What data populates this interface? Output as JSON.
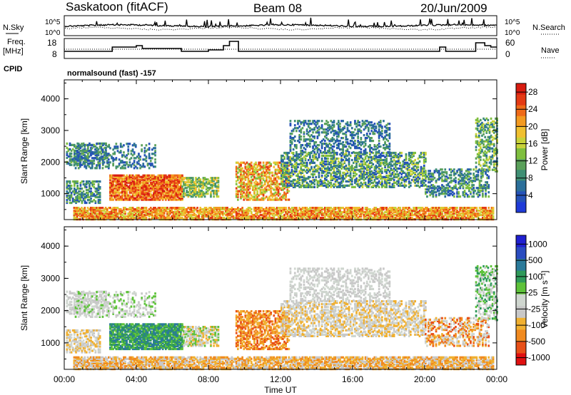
{
  "header": {
    "station": "Saskatoon (fitACF)",
    "beam": "Beam 08",
    "date": "20/Jun/2009"
  },
  "left_labels": {
    "nsky": "N.Sky",
    "freq": "Freq.",
    "freq_unit": "[MHz]",
    "cpid": "CPID"
  },
  "right_labels": {
    "nsearch": "N.Search",
    "nave": "Nave"
  },
  "cpid_text": "normalsound (fast) -157",
  "colors": {
    "power": [
      "#1f3bd8",
      "#2552b8",
      "#2b6f9a",
      "#3f8f74",
      "#5aa05a",
      "#7fbf3f",
      "#c8d23a",
      "#f0c030",
      "#f39a20",
      "#ef6a18",
      "#e43a14",
      "#d81c10"
    ],
    "velocity": [
      "#2020d0",
      "#2a4cc0",
      "#2a7a9a",
      "#2f9a5a",
      "#5ec23a",
      "#cfd6cf",
      "#c8c8c8",
      "#f0b030",
      "#f08a20",
      "#e85018",
      "#e01010"
    ]
  },
  "chart_data": [
    {
      "type": "line",
      "name": "noise-panel",
      "y_left_ticks": [
        "10^5",
        "10^0"
      ],
      "y_right_ticks": [
        "10^5",
        "10^0"
      ],
      "y_left_label": "N.Sky",
      "y_right_label": "N.Search"
    },
    {
      "type": "line",
      "name": "freq-nave-panel",
      "ylabel": "Freq. [MHz]",
      "y_left_ticks": [
        8,
        18
      ],
      "y_right_ticks": [
        0,
        60
      ],
      "y_right_label": "Nave",
      "frequency_mhz": [
        {
          "x": "00:00",
          "y": 11
        },
        {
          "x": "02:40",
          "y": 11
        },
        {
          "x": "02:40",
          "y": 14
        },
        {
          "x": "04:00",
          "y": 14
        },
        {
          "x": "04:00",
          "y": 15
        },
        {
          "x": "04:20",
          "y": 15
        },
        {
          "x": "04:20",
          "y": 13
        },
        {
          "x": "06:30",
          "y": 13
        },
        {
          "x": "06:30",
          "y": 11
        },
        {
          "x": "08:00",
          "y": 11
        },
        {
          "x": "08:00",
          "y": 12
        },
        {
          "x": "08:50",
          "y": 12
        },
        {
          "x": "08:50",
          "y": 15
        },
        {
          "x": "09:10",
          "y": 15
        },
        {
          "x": "09:10",
          "y": 18
        },
        {
          "x": "09:40",
          "y": 18
        },
        {
          "x": "09:40",
          "y": 11
        },
        {
          "x": "20:50",
          "y": 11
        },
        {
          "x": "20:50",
          "y": 14
        },
        {
          "x": "21:10",
          "y": 14
        },
        {
          "x": "21:10",
          "y": 11
        },
        {
          "x": "22:50",
          "y": 11
        },
        {
          "x": "22:50",
          "y": 17
        },
        {
          "x": "23:20",
          "y": 17
        },
        {
          "x": "23:20",
          "y": 15
        },
        {
          "x": "23:40",
          "y": 15
        },
        {
          "x": "23:40",
          "y": 14
        },
        {
          "x": "24:00",
          "y": 14
        }
      ],
      "nave_dotted_level": 12.5
    },
    {
      "type": "heatmap",
      "name": "power-panel",
      "xlabel": "",
      "ylabel": "Slant Range [km]",
      "ylim": [
        180,
        4600
      ],
      "y_ticks": [
        1000,
        2000,
        3000,
        4000
      ],
      "x_ticks": [
        "00:00",
        "04:00",
        "08:00",
        "12:00",
        "16:00",
        "20:00",
        "00:00"
      ],
      "colorbar_label": "Power [dB]",
      "colorbar_ticks": [
        4,
        8,
        12,
        16,
        20,
        24,
        28
      ],
      "colorbar_range": [
        0,
        30
      ]
    },
    {
      "type": "heatmap",
      "name": "velocity-panel",
      "xlabel": "Time UT",
      "ylabel": "Slant Range [km]",
      "ylim": [
        180,
        4600
      ],
      "y_ticks": [
        1000,
        2000,
        3000,
        4000
      ],
      "x_ticks": [
        "00:00",
        "04:00",
        "08:00",
        "12:00",
        "16:00",
        "20:00",
        "00:00"
      ],
      "colorbar_label": "Velocity [m s⁻¹]",
      "colorbar_ticks": [
        "1000",
        "500",
        "100",
        "25",
        "-25",
        "-100",
        "-500",
        "-1000"
      ]
    }
  ],
  "axis": {
    "xlabel": "Time UT"
  }
}
